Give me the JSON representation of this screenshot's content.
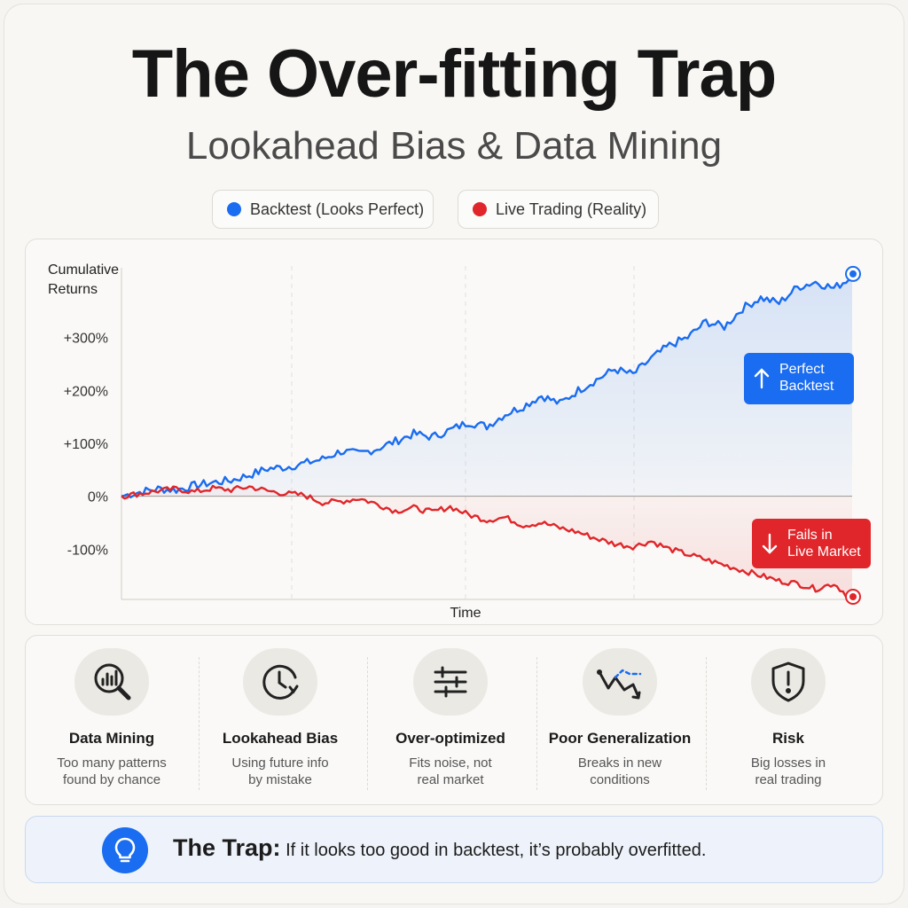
{
  "title": "The Over-fitting Trap",
  "subtitle": "Lookahead Bias & Data Mining",
  "colors": {
    "backtest": "#1a6cf0",
    "live": "#e0262a"
  },
  "chart_data": {
    "type": "line",
    "ylabel": "Cumulative Returns",
    "xlabel": "Time",
    "yticks": [
      "+300%",
      "+200%",
      "+100%",
      "0%",
      "-100%"
    ],
    "ytick_values": [
      300,
      200,
      100,
      0,
      -100
    ],
    "ylim": [
      -195,
      435
    ],
    "grid": "vertical dashed",
    "legend": "top-center",
    "series": [
      {
        "name": "Backtest (Looks Perfect)",
        "color": "#1a6cf0",
        "values": [
          0,
          8,
          14,
          12,
          20,
          26,
          30,
          40,
          52,
          55,
          62,
          70,
          85,
          80,
          90,
          104,
          118,
          112,
          125,
          140,
          132,
          155,
          170,
          190,
          175,
          200,
          220,
          240,
          230,
          260,
          285,
          300,
          330,
          320,
          355,
          375,
          365,
          395,
          405,
          393,
          415
        ]
      },
      {
        "name": "Live Trading (Reality)",
        "color": "#e0262a",
        "values": [
          0,
          5,
          10,
          14,
          8,
          15,
          12,
          18,
          10,
          5,
          2,
          -12,
          -10,
          -4,
          -15,
          -28,
          -22,
          -30,
          -20,
          -35,
          -45,
          -40,
          -55,
          -50,
          -60,
          -68,
          -80,
          -90,
          -95,
          -85,
          -100,
          -110,
          -120,
          -130,
          -140,
          -150,
          -160,
          -165,
          -175,
          -165,
          -195
        ]
      }
    ],
    "annotations": [
      {
        "text": [
          "Perfect",
          "Backtest"
        ],
        "series": "Backtest (Looks Perfect)"
      },
      {
        "text": [
          "Fails in",
          "Live Market"
        ],
        "series": "Live Trading (Reality)"
      }
    ]
  },
  "features": [
    {
      "icon": "magnifier-chart-icon",
      "title": "Data Mining",
      "desc": [
        "Too many patterns",
        "found by chance"
      ]
    },
    {
      "icon": "clock-icon",
      "title": "Lookahead Bias",
      "desc": [
        "Using future info",
        "by mistake"
      ]
    },
    {
      "icon": "sliders-icon",
      "title": "Over-optimized",
      "desc": [
        "Fits noise, not",
        "real market"
      ]
    },
    {
      "icon": "trend-break-icon",
      "title": "Poor Generalization",
      "desc": [
        "Breaks in new",
        "conditions"
      ]
    },
    {
      "icon": "shield-alert-icon",
      "title": "Risk",
      "desc": [
        "Big losses in",
        "real trading"
      ]
    }
  ],
  "trap": {
    "label": "The Trap:",
    "text": "If it looks too good in backtest, it’s probably overfitted."
  }
}
